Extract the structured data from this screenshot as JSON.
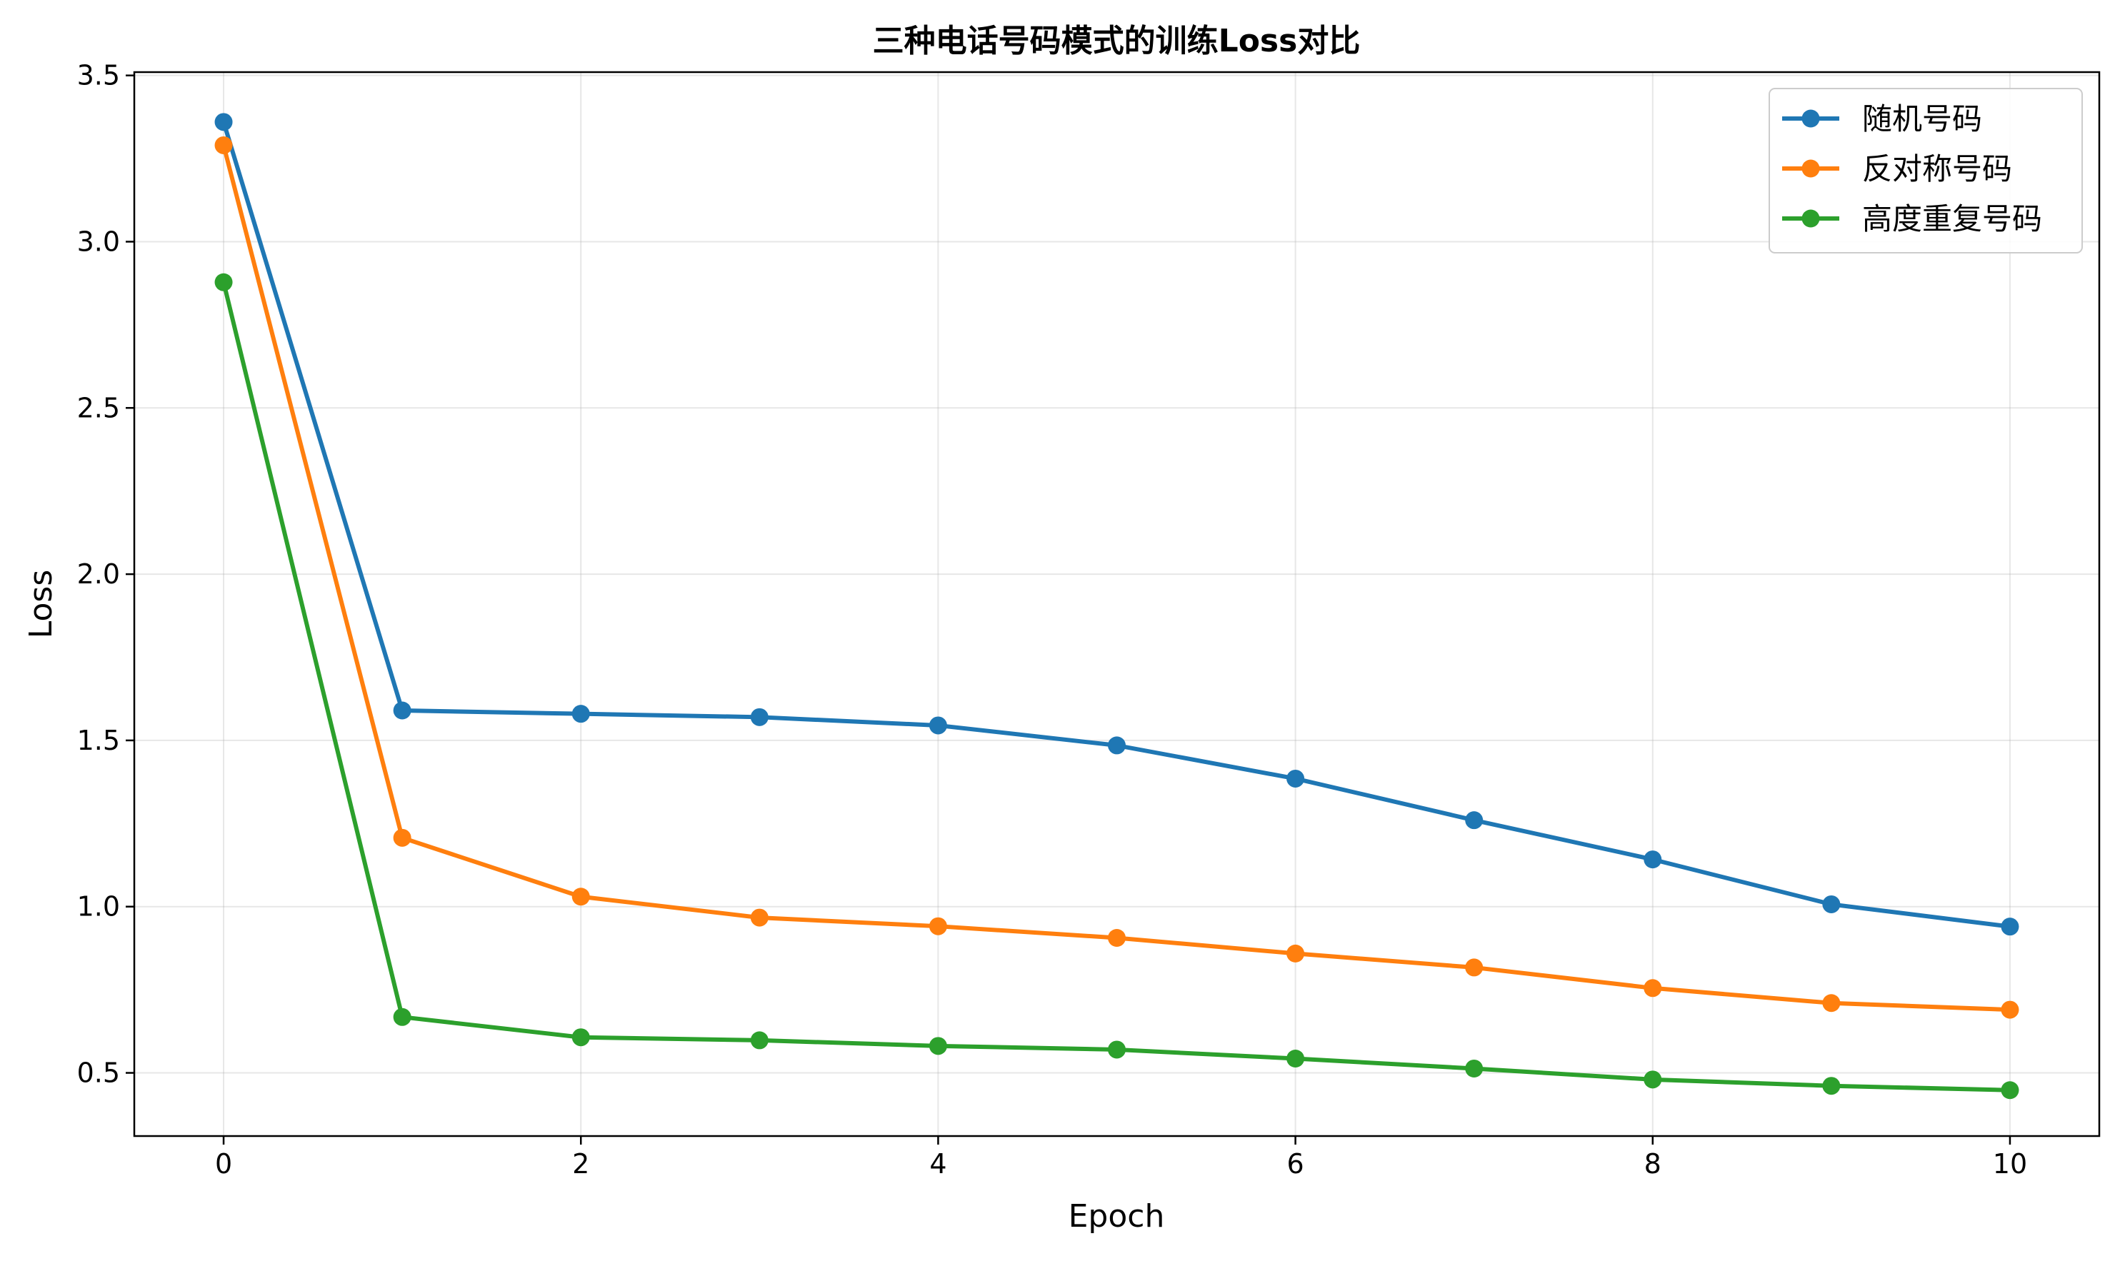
{
  "chart_data": {
    "type": "line",
    "title": "三种电话号码模式的训练Loss对比",
    "xlabel": "Epoch",
    "ylabel": "Loss",
    "x": [
      0,
      1,
      2,
      3,
      4,
      5,
      6,
      7,
      8,
      9,
      10
    ],
    "xticks": [
      "0",
      "2",
      "4",
      "6",
      "8",
      "10"
    ],
    "yticks": [
      "0.5",
      "1.0",
      "1.5",
      "2.0",
      "2.5",
      "3.0",
      "3.5"
    ],
    "xlim": [
      -0.5,
      10.5
    ],
    "ylim": [
      0.31,
      3.51
    ],
    "grid": true,
    "legend_position": "top-right",
    "series": [
      {
        "name": "随机号码",
        "color": "#1f77b4",
        "marker": "circle",
        "values": [
          3.36,
          1.59,
          1.58,
          1.57,
          1.545,
          1.485,
          1.385,
          1.26,
          1.142,
          1.007,
          0.94
        ]
      },
      {
        "name": "反对称号码",
        "color": "#ff7f0e",
        "marker": "circle",
        "values": [
          3.29,
          1.207,
          1.03,
          0.967,
          0.941,
          0.906,
          0.859,
          0.817,
          0.755,
          0.71,
          0.69
        ]
      },
      {
        "name": "高度重复号码",
        "color": "#2ca02c",
        "marker": "circle",
        "values": [
          2.878,
          0.668,
          0.607,
          0.598,
          0.581,
          0.57,
          0.543,
          0.513,
          0.48,
          0.461,
          0.448
        ]
      }
    ]
  }
}
